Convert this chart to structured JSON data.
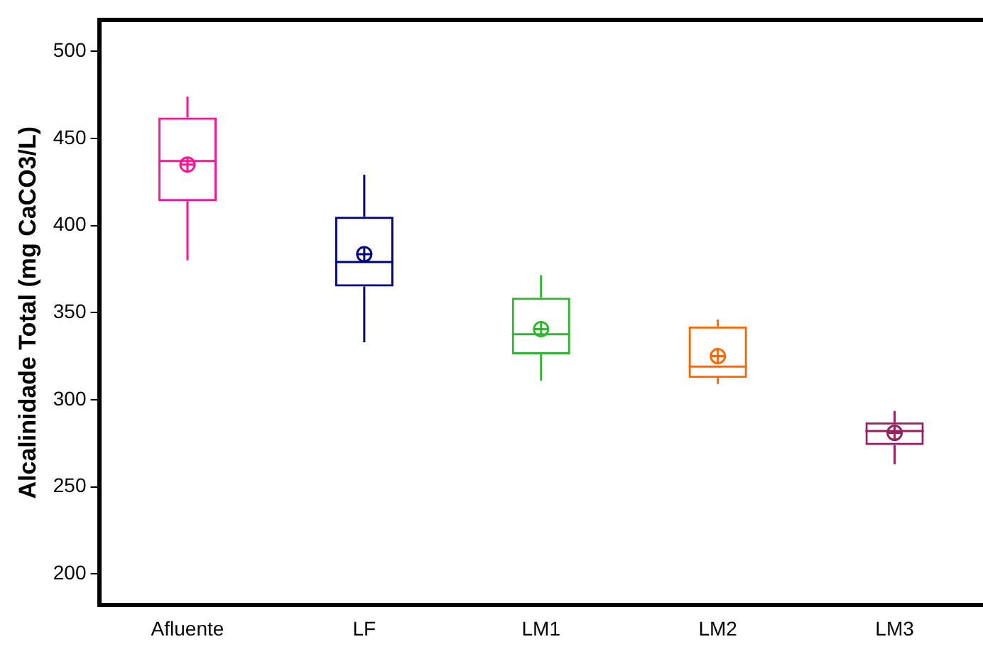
{
  "chart_data": {
    "type": "box",
    "ylabel": "Alcalinidade Total (mg CaCO3/L)",
    "categories": [
      "Afluente",
      "LF",
      "LM1",
      "LM2",
      "LM3"
    ],
    "colors": [
      "#ff1493",
      "#000080",
      "#33b533",
      "#ff6600",
      "#992060"
    ],
    "boxes": [
      {
        "low": 380,
        "q1": 414,
        "median": 437,
        "q3": 462,
        "high": 474,
        "mean": 435
      },
      {
        "low": 333,
        "q1": 365,
        "median": 379,
        "q3": 405,
        "high": 429,
        "mean": 383.5
      },
      {
        "low": 311,
        "q1": 326,
        "median": 337.5,
        "q3": 358.5,
        "high": 371.5,
        "mean": 340.5
      },
      {
        "low": 309,
        "q1": 312.5,
        "median": 319,
        "q3": 342,
        "high": 346,
        "mean": 325
      },
      {
        "low": 263,
        "q1": 274,
        "median": 282,
        "q3": 287,
        "high": 293.5,
        "mean": 281
      }
    ],
    "ylim": [
      182,
      518
    ],
    "yticks": [
      200,
      250,
      300,
      350,
      400,
      450,
      500
    ],
    "grid": false,
    "legend": false
  }
}
